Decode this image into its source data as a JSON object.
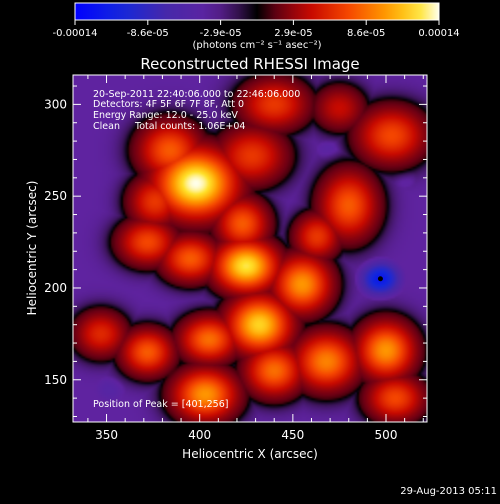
{
  "colorbar": {
    "tick_labels": [
      "-0.00014",
      "-8.6e-05",
      "-2.9e-05",
      "2.9e-05",
      "8.6e-05",
      "0.00014"
    ],
    "unit_label": "(photons cm⁻² s⁻¹ asec⁻²)",
    "range": [
      -0.00014,
      0.00014
    ]
  },
  "chart_data": {
    "type": "heatmap",
    "title": "Reconstructed RHESSI Image",
    "xlabel": "Heliocentric X (arcsec)",
    "ylabel": "Heliocentric Y (arcsec)",
    "xlim": [
      332,
      522
    ],
    "ylim": [
      127,
      316
    ],
    "x_ticks": [
      350,
      400,
      450,
      500
    ],
    "y_ticks": [
      150,
      200,
      250,
      300
    ],
    "info_lines": [
      "20-Sep-2011 22:40:06.000 to 22:46:06.000",
      "Detectors: 4F 5F 6F 7F 8F, Att 0",
      "Energy Range: 12.0 - 25.0 keV",
      "Clean     Total counts: 1.06E+04"
    ],
    "peak_text": "Position of Peak = [401,256]",
    "peak_position": [
      401,
      256
    ],
    "marker_position": [
      497,
      205
    ],
    "blobs": [
      {
        "x": 398,
        "y": 257,
        "sx": 14,
        "sy": 12,
        "v": 1.0
      },
      {
        "x": 384,
        "y": 275,
        "sx": 11,
        "sy": 10,
        "v": 0.55
      },
      {
        "x": 376,
        "y": 247,
        "sx": 9,
        "sy": 9,
        "v": 0.45
      },
      {
        "x": 428,
        "y": 272,
        "sx": 12,
        "sy": 10,
        "v": 0.45
      },
      {
        "x": 372,
        "y": 225,
        "sx": 10,
        "sy": 8,
        "v": 0.5
      },
      {
        "x": 395,
        "y": 216,
        "sx": 10,
        "sy": 8,
        "v": 0.55
      },
      {
        "x": 425,
        "y": 212,
        "sx": 11,
        "sy": 9,
        "v": 0.9
      },
      {
        "x": 455,
        "y": 202,
        "sx": 10,
        "sy": 10,
        "v": 0.7
      },
      {
        "x": 432,
        "y": 180,
        "sx": 11,
        "sy": 10,
        "v": 0.85
      },
      {
        "x": 405,
        "y": 172,
        "sx": 10,
        "sy": 8,
        "v": 0.6
      },
      {
        "x": 440,
        "y": 155,
        "sx": 10,
        "sy": 9,
        "v": 0.6
      },
      {
        "x": 468,
        "y": 160,
        "sx": 11,
        "sy": 10,
        "v": 0.65
      },
      {
        "x": 500,
        "y": 166,
        "sx": 10,
        "sy": 10,
        "v": 0.7
      },
      {
        "x": 505,
        "y": 140,
        "sx": 10,
        "sy": 8,
        "v": 0.5
      },
      {
        "x": 480,
        "y": 245,
        "sx": 10,
        "sy": 12,
        "v": 0.55
      },
      {
        "x": 503,
        "y": 283,
        "sx": 12,
        "sy": 10,
        "v": 0.5
      },
      {
        "x": 440,
        "y": 300,
        "sx": 12,
        "sy": 9,
        "v": 0.45
      },
      {
        "x": 475,
        "y": 298,
        "sx": 9,
        "sy": 8,
        "v": 0.3
      },
      {
        "x": 403,
        "y": 142,
        "sx": 11,
        "sy": 9,
        "v": 0.7
      },
      {
        "x": 372,
        "y": 165,
        "sx": 9,
        "sy": 8,
        "v": 0.55
      },
      {
        "x": 347,
        "y": 175,
        "sx": 9,
        "sy": 8,
        "v": 0.4
      },
      {
        "x": 423,
        "y": 235,
        "sx": 9,
        "sy": 9,
        "v": 0.55
      },
      {
        "x": 463,
        "y": 228,
        "sx": 8,
        "sy": 8,
        "v": 0.45
      },
      {
        "x": 497,
        "y": 205,
        "sx": 9,
        "sy": 8,
        "v": -0.85
      },
      {
        "x": 510,
        "y": 260,
        "sx": 8,
        "sy": 7,
        "v": -0.35
      },
      {
        "x": 352,
        "y": 145,
        "sx": 10,
        "sy": 9,
        "v": -0.35
      },
      {
        "x": 345,
        "y": 205,
        "sx": 10,
        "sy": 12,
        "v": -0.25
      },
      {
        "x": 470,
        "y": 275,
        "sx": 9,
        "sy": 8,
        "v": -0.35
      },
      {
        "x": 460,
        "y": 310,
        "sx": 9,
        "sy": 8,
        "v": -0.3
      },
      {
        "x": 357,
        "y": 305,
        "sx": 8,
        "sy": 7,
        "v": -0.25
      },
      {
        "x": 465,
        "y": 135,
        "sx": 10,
        "sy": 7,
        "v": -0.25
      },
      {
        "x": 350,
        "y": 240,
        "sx": 10,
        "sy": 10,
        "v": -0.2
      }
    ],
    "background_value": -0.25
  },
  "footer": {
    "date_text": "29-Aug-2013 05:11"
  }
}
